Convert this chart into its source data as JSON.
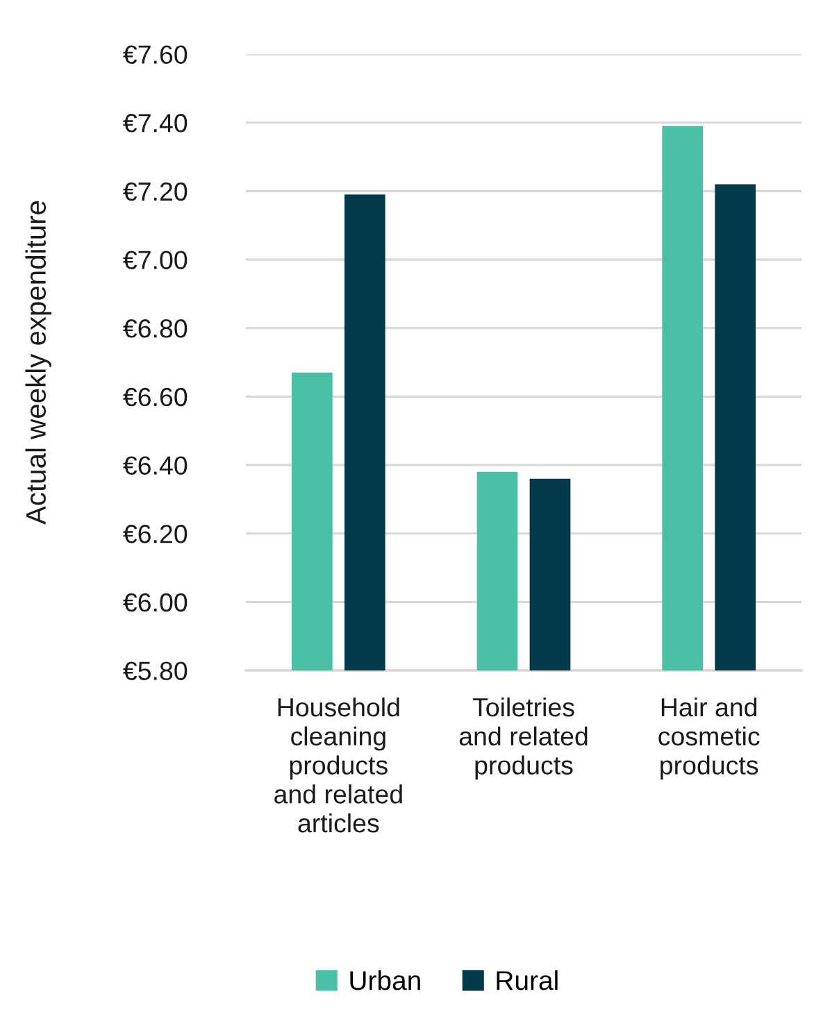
{
  "chart_data": {
    "type": "bar",
    "ylabel": "Actual weekly expenditure",
    "categories": [
      "Household cleaning products and related articles",
      "Toiletries and related products",
      "Hair and cosmetic products"
    ],
    "series": [
      {
        "name": "Urban",
        "color": "#4abfa6",
        "values": [
          6.67,
          6.38,
          7.39
        ]
      },
      {
        "name": "Rural",
        "color": "#023a4a",
        "values": [
          7.19,
          6.36,
          7.22
        ]
      }
    ],
    "ylim": [
      5.8,
      7.6
    ],
    "yticks": [
      {
        "value": 5.8,
        "label": "€5.80"
      },
      {
        "value": 6.0,
        "label": "€6.00"
      },
      {
        "value": 6.2,
        "label": "€6.20"
      },
      {
        "value": 6.4,
        "label": "€6.40"
      },
      {
        "value": 6.6,
        "label": "€6.60"
      },
      {
        "value": 6.8,
        "label": "€6.80"
      },
      {
        "value": 7.0,
        "label": "€7.00"
      },
      {
        "value": 7.2,
        "label": "€7.20"
      },
      {
        "value": 7.4,
        "label": "€7.40"
      },
      {
        "value": 7.6,
        "label": "€7.60"
      }
    ],
    "grid": "y",
    "legend": "bottom"
  }
}
